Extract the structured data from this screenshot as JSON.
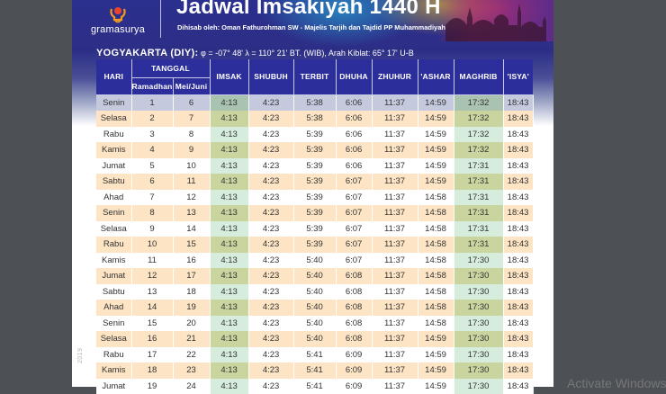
{
  "header": {
    "logo_text": "gramasurya",
    "title": "Jadwal Imsakiyah 1440 H",
    "subtitle": "Dihisab oleh: Oman Fathurohman SW - Majelis Tarjih dan Tajdid PP Muhammadiyah"
  },
  "location": {
    "name": "YOGYAKARTA (DIY):",
    "coords": "φ = -07° 48' λ = 110° 21'  BT. (WIB), Arah Kiblat: 65° 17' U-B"
  },
  "table": {
    "headers": {
      "hari": "HARI",
      "tanggal": "TANGGAL",
      "ramadhan": "Ramadhan",
      "mei_juni": "Mei/Juni",
      "imsak": "IMSAK",
      "shubuh": "SHUBUH",
      "terbit": "TERBIT",
      "dhuha": "DHUHA",
      "zhuhur": "ZHUHUR",
      "ashar": "'ASHAR",
      "maghrib": "MAGHRIB",
      "isya": "'ISYA'"
    },
    "rows": [
      {
        "hari": "Senin",
        "ramadhan": "1",
        "masehi": "6",
        "imsak": "4:13",
        "shubuh": "4:23",
        "terbit": "5:38",
        "dhuha": "6:06",
        "zhuhur": "11:37",
        "ashar": "14:59",
        "maghrib": "17:32",
        "isya": "18:43"
      },
      {
        "hari": "Selasa",
        "ramadhan": "2",
        "masehi": "7",
        "imsak": "4:13",
        "shubuh": "4:23",
        "terbit": "5:38",
        "dhuha": "6:06",
        "zhuhur": "11:37",
        "ashar": "14:59",
        "maghrib": "17:32",
        "isya": "18:43"
      },
      {
        "hari": "Rabu",
        "ramadhan": "3",
        "masehi": "8",
        "imsak": "4:13",
        "shubuh": "4:23",
        "terbit": "5:39",
        "dhuha": "6:06",
        "zhuhur": "11:37",
        "ashar": "14:59",
        "maghrib": "17:32",
        "isya": "18:43"
      },
      {
        "hari": "Kamis",
        "ramadhan": "4",
        "masehi": "9",
        "imsak": "4:13",
        "shubuh": "4:23",
        "terbit": "5:39",
        "dhuha": "6:06",
        "zhuhur": "11:37",
        "ashar": "14:59",
        "maghrib": "17:32",
        "isya": "18:43"
      },
      {
        "hari": "Jumat",
        "ramadhan": "5",
        "masehi": "10",
        "imsak": "4:13",
        "shubuh": "4:23",
        "terbit": "5:39",
        "dhuha": "6:06",
        "zhuhur": "11:37",
        "ashar": "14:59",
        "maghrib": "17:31",
        "isya": "18:43"
      },
      {
        "hari": "Sabtu",
        "ramadhan": "6",
        "masehi": "11",
        "imsak": "4:13",
        "shubuh": "4:23",
        "terbit": "5:39",
        "dhuha": "6:07",
        "zhuhur": "11:37",
        "ashar": "14:59",
        "maghrib": "17:31",
        "isya": "18:43"
      },
      {
        "hari": "Ahad",
        "ramadhan": "7",
        "masehi": "12",
        "imsak": "4:13",
        "shubuh": "4:23",
        "terbit": "5:39",
        "dhuha": "6:07",
        "zhuhur": "11:37",
        "ashar": "14:58",
        "maghrib": "17:31",
        "isya": "18:43"
      },
      {
        "hari": "Senin",
        "ramadhan": "8",
        "masehi": "13",
        "imsak": "4:13",
        "shubuh": "4:23",
        "terbit": "5:39",
        "dhuha": "6:07",
        "zhuhur": "11:37",
        "ashar": "14:58",
        "maghrib": "17:31",
        "isya": "18:43"
      },
      {
        "hari": "Selasa",
        "ramadhan": "9",
        "masehi": "14",
        "imsak": "4:13",
        "shubuh": "4:23",
        "terbit": "5:39",
        "dhuha": "6:07",
        "zhuhur": "11:37",
        "ashar": "14:58",
        "maghrib": "17:31",
        "isya": "18:43"
      },
      {
        "hari": "Rabu",
        "ramadhan": "10",
        "masehi": "15",
        "imsak": "4:13",
        "shubuh": "4:23",
        "terbit": "5:39",
        "dhuha": "6:07",
        "zhuhur": "11:37",
        "ashar": "14:58",
        "maghrib": "17:31",
        "isya": "18:43"
      },
      {
        "hari": "Kamis",
        "ramadhan": "11",
        "masehi": "16",
        "imsak": "4:13",
        "shubuh": "4:23",
        "terbit": "5:40",
        "dhuha": "6:07",
        "zhuhur": "11:37",
        "ashar": "14:58",
        "maghrib": "17:30",
        "isya": "18:43"
      },
      {
        "hari": "Jumat",
        "ramadhan": "12",
        "masehi": "17",
        "imsak": "4:13",
        "shubuh": "4:23",
        "terbit": "5:40",
        "dhuha": "6:08",
        "zhuhur": "11:37",
        "ashar": "14:58",
        "maghrib": "17:30",
        "isya": "18:43"
      },
      {
        "hari": "Sabtu",
        "ramadhan": "13",
        "masehi": "18",
        "imsak": "4:13",
        "shubuh": "4:23",
        "terbit": "5:40",
        "dhuha": "6:08",
        "zhuhur": "11:37",
        "ashar": "14:58",
        "maghrib": "17:30",
        "isya": "18:43"
      },
      {
        "hari": "Ahad",
        "ramadhan": "14",
        "masehi": "19",
        "imsak": "4:13",
        "shubuh": "4:23",
        "terbit": "5:40",
        "dhuha": "6:08",
        "zhuhur": "11:37",
        "ashar": "14:58",
        "maghrib": "17:30",
        "isya": "18:43"
      },
      {
        "hari": "Senin",
        "ramadhan": "15",
        "masehi": "20",
        "imsak": "4:13",
        "shubuh": "4:23",
        "terbit": "5:40",
        "dhuha": "6:08",
        "zhuhur": "11:37",
        "ashar": "14:58",
        "maghrib": "17:30",
        "isya": "18:43"
      },
      {
        "hari": "Selasa",
        "ramadhan": "16",
        "masehi": "21",
        "imsak": "4:13",
        "shubuh": "4:23",
        "terbit": "5:40",
        "dhuha": "6:08",
        "zhuhur": "11:37",
        "ashar": "14:59",
        "maghrib": "17:30",
        "isya": "18:43"
      },
      {
        "hari": "Rabu",
        "ramadhan": "17",
        "masehi": "22",
        "imsak": "4:13",
        "shubuh": "4:23",
        "terbit": "5:41",
        "dhuha": "6:09",
        "zhuhur": "11:37",
        "ashar": "14:59",
        "maghrib": "17:30",
        "isya": "18:43"
      },
      {
        "hari": "Kamis",
        "ramadhan": "18",
        "masehi": "23",
        "imsak": "4:13",
        "shubuh": "4:23",
        "terbit": "5:41",
        "dhuha": "6:09",
        "zhuhur": "11:37",
        "ashar": "14:59",
        "maghrib": "17:30",
        "isya": "18:43"
      },
      {
        "hari": "Jumat",
        "ramadhan": "19",
        "masehi": "24",
        "imsak": "4:13",
        "shubuh": "4:23",
        "terbit": "5:41",
        "dhuha": "6:09",
        "zhuhur": "11:37",
        "ashar": "14:59",
        "maghrib": "17:30",
        "isya": "18:43"
      }
    ]
  },
  "side_mark": "2019",
  "os_watermark": "Activate Windows",
  "colors": {
    "header_blue": "#2c2e9c",
    "row_peach": "#fde4c4",
    "imsak_maghrib_green_light": "#d6ecdd",
    "imsak_maghrib_green_dark": "#c9d49f",
    "viewer_bg": "#4d5054"
  }
}
